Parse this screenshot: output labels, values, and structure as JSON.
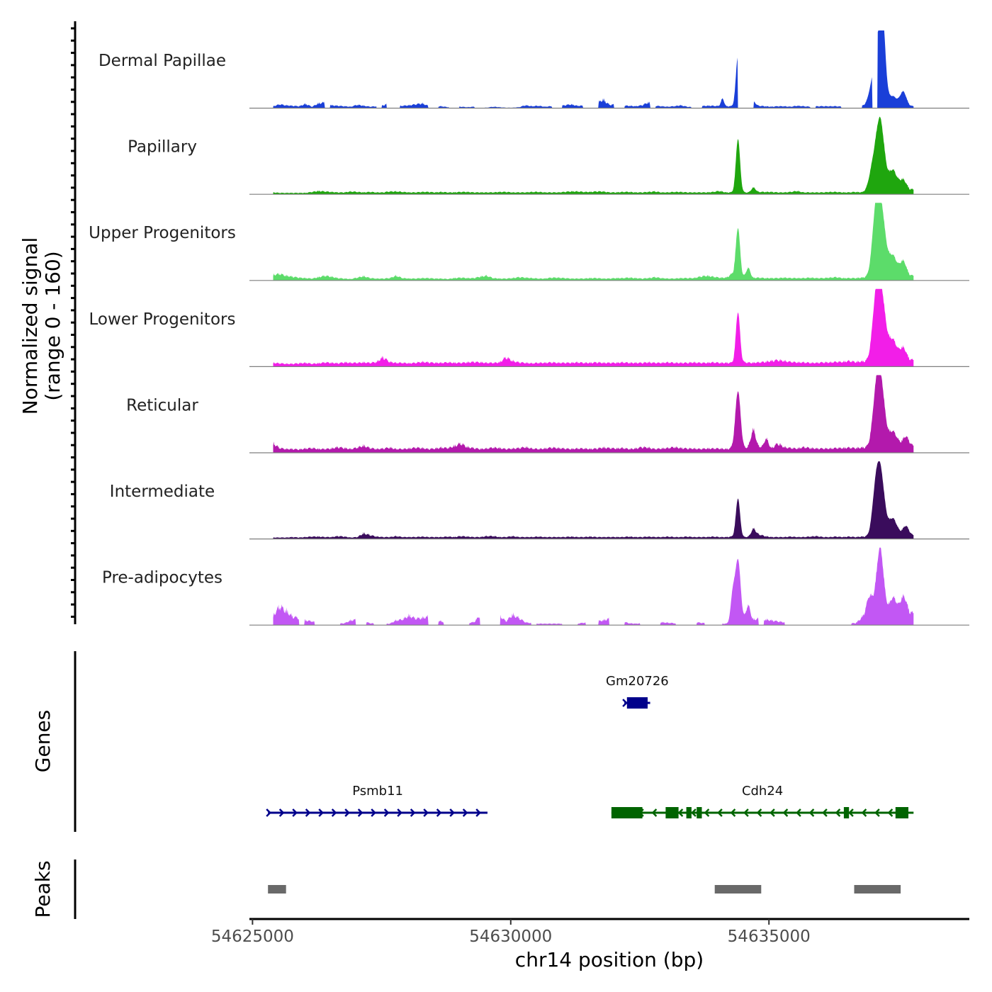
{
  "chart_data": {
    "type": "area",
    "ylabel": "Normalized signal",
    "ylabel2": "(range 0 - 160)",
    "yrange": [
      0,
      160
    ],
    "xlabel": "chr14 position (bp)",
    "xlim": [
      54624940,
      54638880
    ],
    "x_ticks": [
      54625000,
      54630000,
      54635000
    ],
    "x_tick_labels": [
      "54625000",
      "54630000",
      "54635000"
    ],
    "coverage_range": [
      54625400,
      54637800
    ],
    "tracks": [
      {
        "name": "Dermal Papillae",
        "color": "#1a3fd8",
        "gaps": [
          [
            54626400,
            54626500
          ],
          [
            54627400,
            54627500
          ],
          [
            54627600,
            54627850
          ],
          [
            54628400,
            54628600
          ],
          [
            54628800,
            54629000
          ],
          [
            54629300,
            54629500
          ],
          [
            54630800,
            54631000
          ],
          [
            54631400,
            54631700
          ],
          [
            54632000,
            54632200
          ],
          [
            54632700,
            54632800
          ],
          [
            54633500,
            54633700
          ],
          [
            54634400,
            54634700
          ],
          [
            54635800,
            54635900
          ],
          [
            54636400,
            54636800
          ],
          [
            54637000,
            54637100
          ]
        ],
        "background": [
          4,
          8,
          6,
          5,
          4,
          9,
          3,
          10,
          12,
          6,
          5,
          4,
          3,
          7,
          5,
          3,
          4,
          6,
          11,
          4,
          5,
          6,
          8,
          10,
          5,
          3,
          4,
          2,
          4,
          3,
          2,
          3,
          2,
          1,
          3,
          2,
          1,
          1,
          2,
          6,
          4,
          5,
          3,
          4,
          4,
          6,
          8,
          5,
          5,
          6,
          10,
          18,
          7,
          8,
          5,
          5,
          4,
          6,
          12,
          5,
          4,
          3,
          4,
          6,
          3,
          2,
          4,
          5,
          5,
          4,
          4,
          4,
          3,
          4,
          3,
          5,
          4,
          3,
          4,
          4,
          3,
          5,
          4,
          3,
          4,
          4,
          4,
          4,
          3,
          3,
          4,
          5,
          3,
          2,
          3,
          3,
          4,
          4,
          4,
          4
        ],
        "peaks": [
          [
            54634400,
            105,
            40
          ],
          [
            54634100,
            16,
            30
          ],
          [
            54634700,
            10,
            40
          ],
          [
            54637150,
            145,
            80
          ],
          [
            54637200,
            90,
            50
          ],
          [
            54637000,
            40,
            70
          ],
          [
            54637600,
            30,
            60
          ],
          [
            54637400,
            20,
            80
          ]
        ]
      },
      {
        "name": "Papillary",
        "color": "#1fa60e",
        "gaps": [],
        "background": [
          4,
          3,
          3,
          3,
          3,
          3,
          5,
          7,
          6,
          5,
          4,
          4,
          6,
          5,
          4,
          5,
          4,
          4,
          6,
          6,
          5,
          4,
          4,
          5,
          5,
          4,
          5,
          4,
          4,
          5,
          5,
          4,
          4,
          4,
          4,
          5,
          5,
          4,
          4,
          4,
          5,
          5,
          4,
          4,
          4,
          5,
          6,
          6,
          5,
          5,
          6,
          6,
          4,
          4,
          5,
          5,
          4,
          4,
          5,
          6,
          4,
          4,
          5,
          5,
          4,
          4,
          4,
          4,
          5,
          7,
          4,
          4,
          5,
          4,
          4,
          5,
          5,
          5,
          4,
          4,
          5,
          7,
          4,
          4,
          4,
          4,
          5,
          5,
          4,
          4,
          5,
          4,
          4,
          8,
          10,
          10,
          10,
          10,
          10,
          10
        ],
        "peaks": [
          [
            54634400,
            110,
            40
          ],
          [
            54634700,
            10,
            40
          ],
          [
            54637150,
            145,
            80
          ],
          [
            54637000,
            40,
            70
          ],
          [
            54637400,
            40,
            80
          ],
          [
            54637600,
            20,
            60
          ]
        ]
      },
      {
        "name": "Upper Progenitors",
        "color": "#5cdc6a",
        "gaps": [],
        "background": [
          12,
          14,
          10,
          8,
          6,
          5,
          4,
          7,
          10,
          8,
          5,
          4,
          3,
          6,
          9,
          5,
          4,
          4,
          5,
          10,
          5,
          4,
          4,
          5,
          5,
          4,
          4,
          3,
          5,
          6,
          5,
          5,
          8,
          10,
          5,
          4,
          4,
          5,
          7,
          6,
          5,
          4,
          4,
          6,
          6,
          5,
          4,
          4,
          4,
          5,
          5,
          4,
          4,
          5,
          5,
          6,
          5,
          4,
          5,
          7,
          5,
          4,
          4,
          5,
          5,
          5,
          8,
          10,
          8,
          6,
          6,
          14,
          9,
          7,
          5,
          6,
          5,
          5,
          5,
          6,
          5,
          5,
          5,
          6,
          5,
          5,
          6,
          7,
          5,
          5,
          5,
          6,
          7,
          7,
          8,
          9,
          10,
          10,
          10,
          10
        ],
        "peaks": [
          [
            54634400,
            100,
            40
          ],
          [
            54634600,
            20,
            40
          ],
          [
            54637150,
            160,
            90
          ],
          [
            54637050,
            60,
            60
          ],
          [
            54637400,
            40,
            80
          ],
          [
            54637600,
            30,
            60
          ]
        ]
      },
      {
        "name": "Lower Progenitors",
        "color": "#f21ee8",
        "gaps": [],
        "background": [
          8,
          7,
          6,
          6,
          7,
          8,
          6,
          7,
          9,
          8,
          7,
          9,
          8,
          8,
          9,
          8,
          10,
          20,
          10,
          8,
          8,
          7,
          8,
          10,
          9,
          8,
          8,
          9,
          8,
          8,
          9,
          10,
          9,
          8,
          8,
          9,
          20,
          12,
          9,
          8,
          7,
          8,
          8,
          9,
          8,
          8,
          8,
          9,
          8,
          8,
          9,
          8,
          8,
          8,
          9,
          8,
          8,
          8,
          9,
          8,
          8,
          9,
          8,
          8,
          8,
          9,
          8,
          8,
          9,
          8,
          8,
          8,
          8,
          9,
          8,
          9,
          10,
          12,
          14,
          12,
          10,
          9,
          9,
          8,
          8,
          9,
          9,
          10,
          10,
          12,
          10,
          11,
          11,
          12,
          14,
          15,
          14,
          14,
          14,
          14
        ],
        "peaks": [
          [
            54634400,
            105,
            40
          ],
          [
            54637150,
            160,
            90
          ],
          [
            54637050,
            50,
            60
          ],
          [
            54637400,
            40,
            80
          ],
          [
            54637600,
            25,
            60
          ]
        ]
      },
      {
        "name": "Reticular",
        "color": "#b319ac",
        "gaps": [],
        "background": [
          20,
          10,
          8,
          8,
          7,
          9,
          10,
          8,
          8,
          9,
          12,
          10,
          8,
          11,
          15,
          10,
          8,
          9,
          11,
          8,
          8,
          9,
          11,
          10,
          8,
          9,
          11,
          10,
          14,
          20,
          12,
          10,
          8,
          9,
          11,
          10,
          8,
          9,
          10,
          12,
          9,
          8,
          9,
          11,
          10,
          9,
          8,
          9,
          9,
          8,
          9,
          11,
          10,
          9,
          10,
          8,
          9,
          12,
          11,
          8,
          9,
          10,
          12,
          10,
          9,
          9,
          8,
          9,
          9,
          9,
          8,
          9,
          8,
          9,
          20,
          14,
          10,
          9,
          20,
          12,
          10,
          9,
          12,
          10,
          9,
          9,
          9,
          10,
          10,
          11,
          10,
          11,
          12,
          12,
          13,
          14,
          14,
          14,
          14,
          14
        ],
        "peaks": [
          [
            54634400,
            120,
            50
          ],
          [
            54634700,
            30,
            40
          ],
          [
            54634950,
            20,
            40
          ],
          [
            54637150,
            150,
            80
          ],
          [
            54637050,
            50,
            60
          ],
          [
            54637400,
            30,
            80
          ],
          [
            54637650,
            20,
            60
          ]
        ]
      },
      {
        "name": "Intermediate",
        "color": "#3a0c5c",
        "gaps": [],
        "background": [
          3,
          3,
          3,
          4,
          3,
          4,
          5,
          5,
          4,
          4,
          6,
          5,
          3,
          4,
          12,
          8,
          5,
          4,
          4,
          6,
          4,
          4,
          4,
          5,
          4,
          4,
          4,
          5,
          4,
          6,
          5,
          4,
          4,
          6,
          6,
          4,
          4,
          6,
          4,
          4,
          4,
          5,
          4,
          4,
          4,
          4,
          5,
          4,
          4,
          5,
          4,
          4,
          4,
          4,
          4,
          5,
          4,
          4,
          5,
          4,
          4,
          5,
          4,
          4,
          5,
          4,
          4,
          4,
          5,
          4,
          4,
          5,
          4,
          4,
          6,
          10,
          6,
          4,
          4,
          4,
          5,
          4,
          4,
          5,
          6,
          4,
          4,
          5,
          4,
          5,
          4,
          5,
          5,
          5,
          6,
          7,
          7,
          7,
          7,
          7
        ],
        "peaks": [
          [
            54634400,
            80,
            40
          ],
          [
            54634700,
            15,
            40
          ],
          [
            54637150,
            140,
            80
          ],
          [
            54637050,
            50,
            60
          ],
          [
            54637400,
            35,
            80
          ],
          [
            54637650,
            20,
            60
          ]
        ]
      },
      {
        "name": "Pre-adipocytes",
        "color": "#c257f4",
        "gaps": [
          [
            54625900,
            54626000
          ],
          [
            54626200,
            54626700
          ],
          [
            54627000,
            54627200
          ],
          [
            54627350,
            54627600
          ],
          [
            54628400,
            54628600
          ],
          [
            54628700,
            54629200
          ],
          [
            54629400,
            54629800
          ],
          [
            54630400,
            54630500
          ],
          [
            54631000,
            54631300
          ],
          [
            54631450,
            54631700
          ],
          [
            54631900,
            54632200
          ],
          [
            54632500,
            54632900
          ],
          [
            54633200,
            54633600
          ],
          [
            54633750,
            54634100
          ],
          [
            54634800,
            54634900
          ],
          [
            54635300,
            54636600
          ]
        ],
        "background": [
          20,
          40,
          30,
          18,
          15,
          10,
          8,
          5,
          4,
          3,
          3,
          4,
          10,
          12,
          8,
          4,
          3,
          3,
          3,
          10,
          12,
          20,
          14,
          15,
          18,
          10,
          8,
          4,
          3,
          4,
          5,
          6,
          20,
          10,
          18,
          20,
          8,
          22,
          15,
          6,
          4,
          3,
          3,
          3,
          3,
          3,
          3,
          3,
          5,
          6,
          8,
          10,
          14,
          10,
          8,
          4,
          3,
          4,
          5,
          6,
          6,
          5,
          4,
          3,
          5,
          7,
          5,
          4,
          3,
          3,
          3,
          3,
          5,
          12,
          10,
          14,
          12,
          10,
          8,
          6,
          5,
          4,
          4,
          4,
          4,
          4,
          4,
          4,
          4,
          4,
          4,
          15,
          20,
          18,
          20,
          12,
          18,
          15,
          25,
          25
        ],
        "peaks": [
          [
            54634400,
            130,
            50
          ],
          [
            54634300,
            60,
            40
          ],
          [
            54634600,
            30,
            40
          ],
          [
            54637150,
            140,
            70
          ],
          [
            54636950,
            40,
            60
          ],
          [
            54637400,
            40,
            80
          ],
          [
            54637600,
            40,
            60
          ]
        ]
      }
    ],
    "genes_label": "Genes",
    "genes": [
      {
        "name": "Gm20726",
        "strand": "+",
        "start": 54632200,
        "end": 54632700,
        "row": 1,
        "color": "#00008b",
        "exons": [
          [
            54632250,
            54632650
          ]
        ]
      },
      {
        "name": "Psmb11",
        "strand": "+",
        "start": 54625300,
        "end": 54629550,
        "row": 2,
        "color": "#00008b",
        "exons": []
      },
      {
        "name": "Cdh24",
        "strand": "-",
        "start": 54631950,
        "end": 54637800,
        "row": 2,
        "color": "#006400",
        "exons": [
          [
            54631950,
            54632550
          ],
          [
            54633000,
            54633250
          ],
          [
            54633400,
            54633500
          ],
          [
            54633600,
            54633700
          ],
          [
            54636450,
            54636550
          ],
          [
            54637450,
            54637700
          ]
        ]
      }
    ],
    "peaks_label": "Peaks",
    "peak_regions": [
      [
        54625300,
        54625650
      ],
      [
        54633950,
        54634850
      ],
      [
        54636650,
        54637550
      ]
    ]
  }
}
